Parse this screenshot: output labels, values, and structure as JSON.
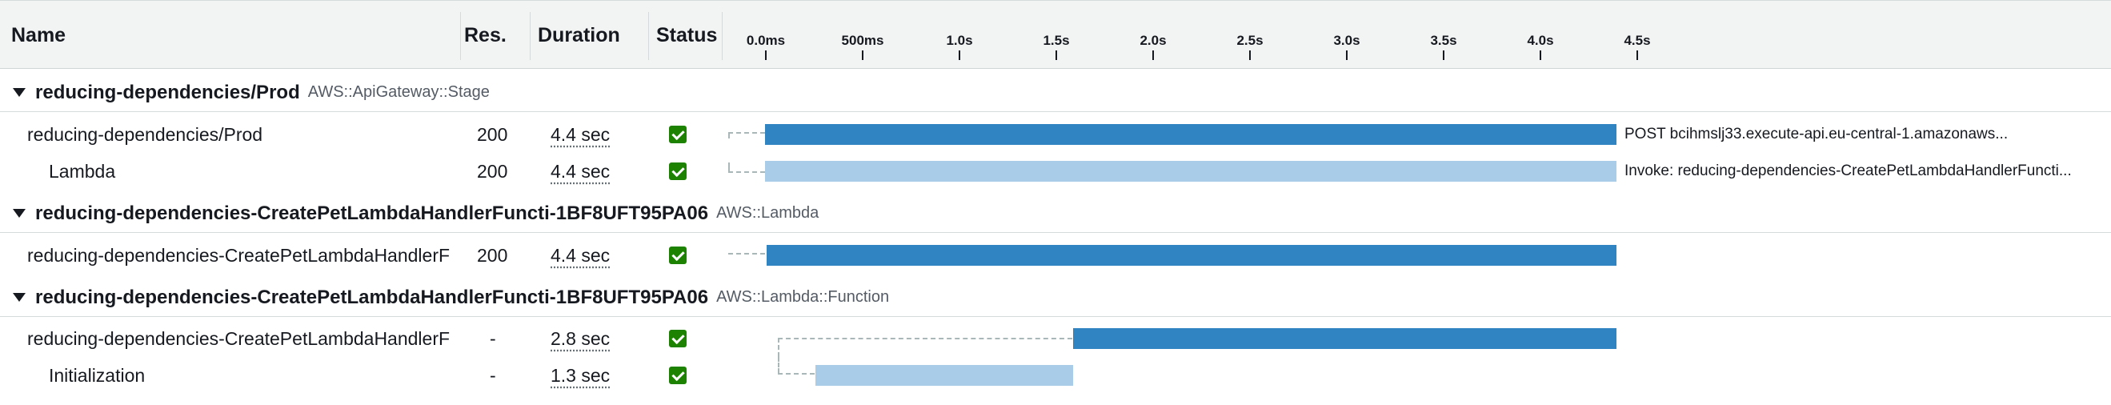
{
  "columns": {
    "name": "Name",
    "res": "Res.",
    "duration": "Duration",
    "status": "Status"
  },
  "timeline_ticks": [
    "0.0ms",
    "500ms",
    "1.0s",
    "1.5s",
    "2.0s",
    "2.5s",
    "3.0s",
    "3.5s",
    "4.0s",
    "4.5s"
  ],
  "groups": [
    {
      "name": "reducing-dependencies/Prod",
      "type": "AWS::ApiGateway::Stage"
    },
    {
      "name": "reducing-dependencies-CreatePetLambdaHandlerFuncti-1BF8UFT95PA06",
      "type": "AWS::Lambda"
    },
    {
      "name": "reducing-dependencies-CreatePetLambdaHandlerFuncti-1BF8UFT95PA06",
      "type": "AWS::Lambda::Function"
    }
  ],
  "rows": [
    {
      "name": "reducing-dependencies/Prod",
      "res": "200",
      "duration": "4.4 sec",
      "status": "ok",
      "annotation": "POST bcihmslj33.execute-api.eu-central-1.amazonaws..."
    },
    {
      "name": "Lambda",
      "res": "200",
      "duration": "4.4 sec",
      "status": "ok",
      "annotation": "Invoke: reducing-dependencies-CreatePetLambdaHandlerFuncti..."
    },
    {
      "name": "reducing-dependencies-CreatePetLambdaHandlerF",
      "res": "200",
      "duration": "4.4 sec",
      "status": "ok",
      "annotation": ""
    },
    {
      "name": "reducing-dependencies-CreatePetLambdaHandlerF",
      "res": "-",
      "duration": "2.8 sec",
      "status": "ok",
      "annotation": ""
    },
    {
      "name": "Initialization",
      "res": "-",
      "duration": "1.3 sec",
      "status": "ok",
      "annotation": ""
    }
  ],
  "colors": {
    "bar_dark": "#3184c2",
    "bar_light": "#a9cce8",
    "status_ok": "#1d8102"
  }
}
